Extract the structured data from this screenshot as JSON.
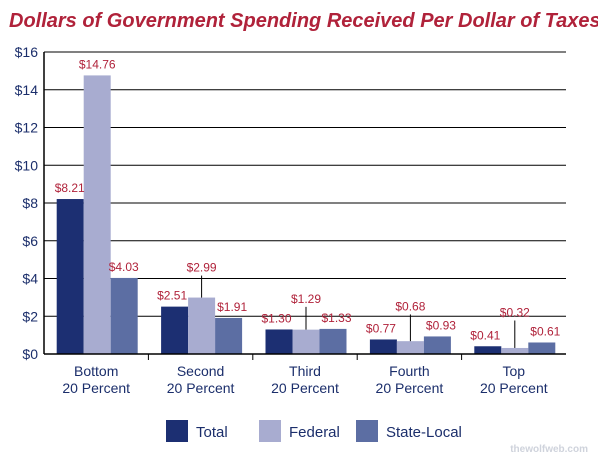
{
  "chart_data": {
    "type": "bar",
    "title": "Dollars of Government Spending Received Per Dollar of Taxes Paid",
    "categories": [
      [
        "Bottom",
        "20 Percent"
      ],
      [
        "Second",
        "20 Percent"
      ],
      [
        "Third",
        "20 Percent"
      ],
      [
        "Fourth",
        "20 Percent"
      ],
      [
        "Top",
        "20 Percent"
      ]
    ],
    "series": [
      {
        "name": "Total",
        "color": "#1c2f72",
        "values": [
          8.21,
          2.51,
          1.3,
          0.77,
          0.41
        ],
        "labels": [
          "$8.21",
          "$2.51",
          "$1.30",
          "$0.77",
          "$0.41"
        ]
      },
      {
        "name": "Federal",
        "color": "#a8acd0",
        "values": [
          14.76,
          2.99,
          1.29,
          0.68,
          0.32
        ],
        "labels": [
          "$14.76",
          "$2.99",
          "$1.29",
          "$0.68",
          "$0.32"
        ]
      },
      {
        "name": "State-Local",
        "color": "#5c6ea3",
        "values": [
          4.03,
          1.91,
          1.33,
          0.93,
          0.61
        ],
        "labels": [
          "$4.03",
          "$1.91",
          "$1.33",
          "$0.93",
          "$0.61"
        ]
      }
    ],
    "ylim": [
      0,
      16
    ],
    "yticks": [
      0,
      2,
      4,
      6,
      8,
      10,
      12,
      14,
      16
    ],
    "ytick_labels": [
      "$0",
      "$2",
      "$4",
      "$6",
      "$8",
      "$10",
      "$12",
      "$14",
      "$16"
    ],
    "xlabel": "",
    "ylabel": "",
    "grid": true,
    "legend_position": "bottom"
  },
  "watermark": "thewolfweb.com",
  "colors": {
    "title": "#b0223a",
    "axis_text": "#1b2e6b",
    "data_label": "#b0223a",
    "grid": "#000000"
  }
}
